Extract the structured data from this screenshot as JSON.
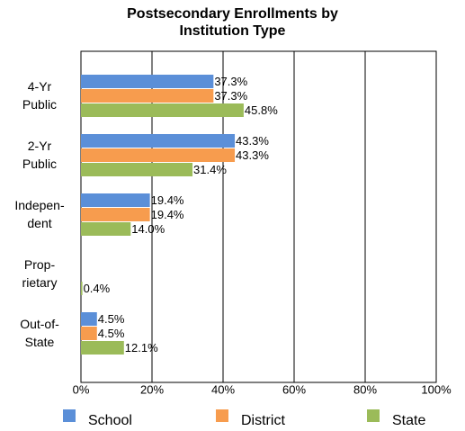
{
  "chart_data": {
    "type": "hbar",
    "title": "Postsecondary Enrollments by\nInstitution Type",
    "categories": [
      "4-Yr\nPublic",
      "2-Yr\nPublic",
      "Indepen-\ndent",
      "Prop-\nrietary",
      "Out-of-\nState"
    ],
    "series": [
      {
        "name": "School",
        "color": "#5b8fd8",
        "values": [
          37.3,
          43.3,
          19.4,
          0,
          4.5
        ],
        "value_labels": [
          "37.3%",
          "43.3%",
          "19.4%",
          null,
          "4.5%"
        ]
      },
      {
        "name": "District",
        "color": "#f79c4e",
        "values": [
          37.3,
          43.3,
          19.4,
          0,
          4.5
        ],
        "value_labels": [
          "37.3%",
          "43.3%",
          "19.4%",
          null,
          "4.5%"
        ]
      },
      {
        "name": "State",
        "color": "#9bbb59",
        "values": [
          45.8,
          31.4,
          14.0,
          0.4,
          12.1
        ],
        "value_labels": [
          "45.8%",
          "31.4%",
          "14.0%",
          "0.4%",
          "12.1%"
        ]
      }
    ],
    "xlim": [
      0,
      100
    ],
    "xticks": [
      {
        "value": 0,
        "label": "0%"
      },
      {
        "value": 20,
        "label": "20%"
      },
      {
        "value": 40,
        "label": "40%"
      },
      {
        "value": 60,
        "label": "60%"
      },
      {
        "value": 80,
        "label": "80%"
      },
      {
        "value": 100,
        "label": "100%"
      }
    ],
    "grid": true,
    "legend": "bottom"
  }
}
